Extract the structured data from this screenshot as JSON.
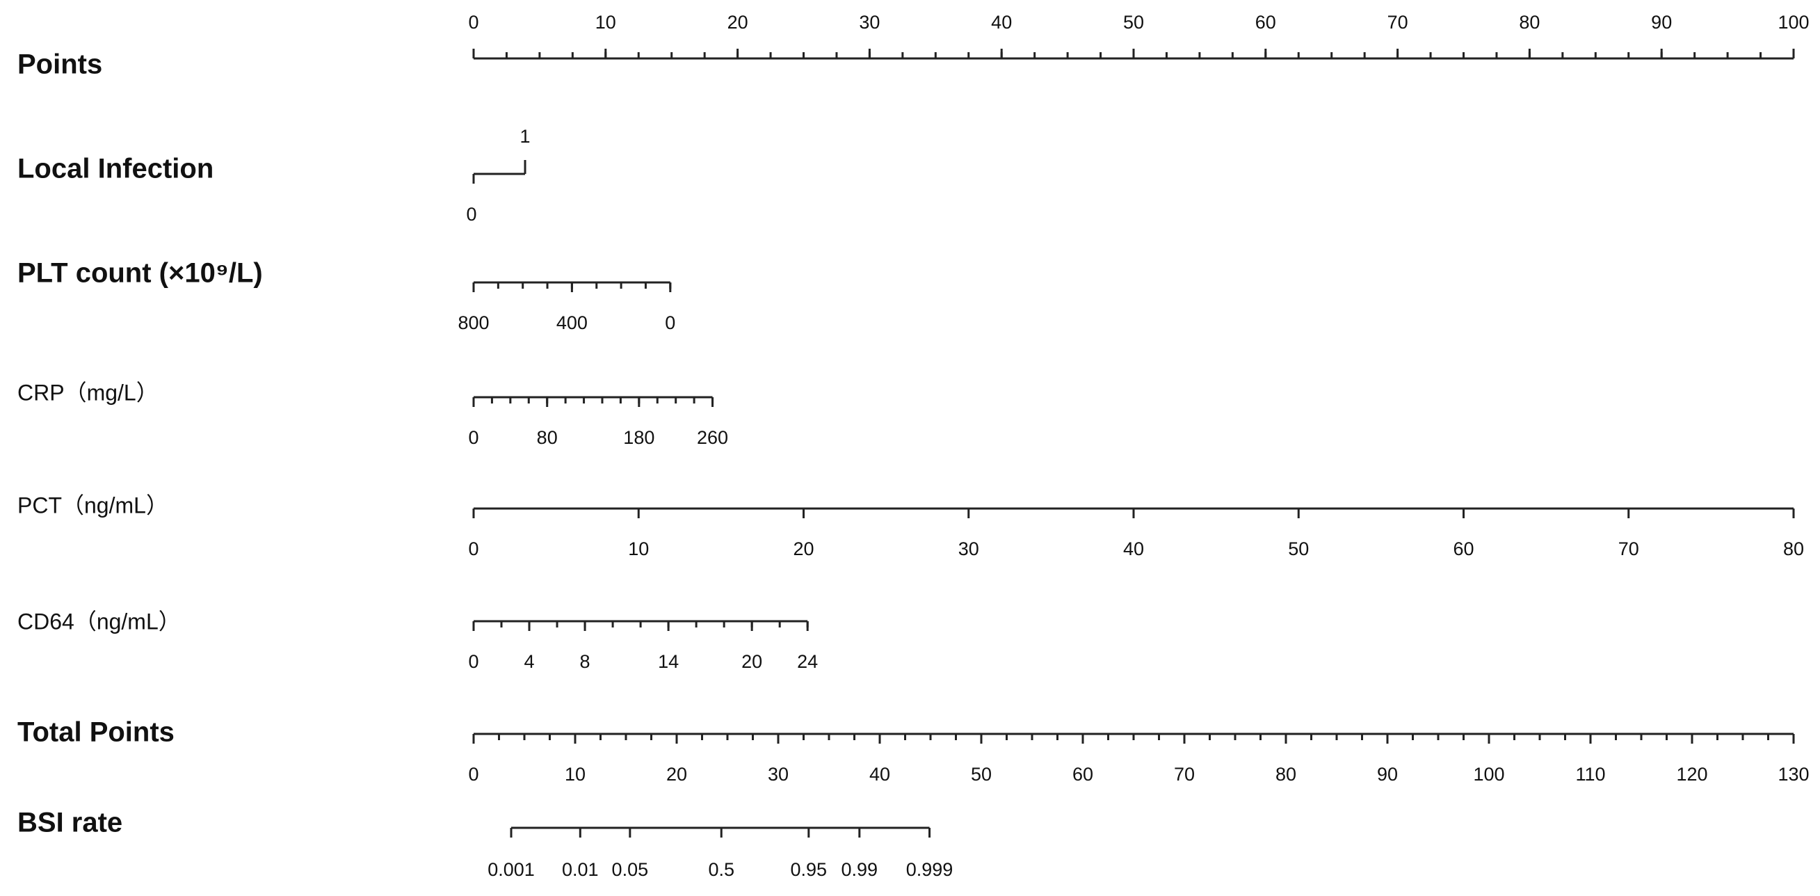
{
  "chart_data": {
    "type": "nomogram",
    "axes": [
      {
        "label": "Points",
        "bold": true,
        "lim": [
          0,
          100
        ],
        "points": [
          0,
          100
        ],
        "ticks": [
          0,
          10,
          20,
          30,
          40,
          50,
          60,
          70,
          80,
          90,
          100
        ],
        "minor_step": 2.5,
        "tick_side": "top"
      },
      {
        "label": "Local Infection",
        "bold": true,
        "lim": [
          0,
          1
        ],
        "points": [
          0,
          3.9
        ],
        "ticks": [
          0,
          1
        ],
        "tick_side": "alternate"
      },
      {
        "label": "PLT count (×10⁹/L)",
        "bold": true,
        "lim": [
          800,
          0
        ],
        "points": [
          0,
          14.9
        ],
        "ticks": [
          800,
          400,
          0
        ],
        "minor_step": 100,
        "tick_side": "bottom"
      },
      {
        "label": "CRP（mg/L）",
        "bold": false,
        "lim": [
          0,
          260
        ],
        "points": [
          0,
          18.1
        ],
        "ticks": [
          0,
          80,
          180,
          260
        ],
        "minor_step": 20,
        "tick_side": "bottom"
      },
      {
        "label": "PCT（ng/mL）",
        "bold": false,
        "lim": [
          0,
          80
        ],
        "points": [
          0,
          100
        ],
        "ticks": [
          0,
          10,
          20,
          30,
          40,
          50,
          60,
          70,
          80
        ],
        "tick_side": "bottom"
      },
      {
        "label": "CD64（ng/mL）",
        "bold": false,
        "lim": [
          0,
          24
        ],
        "points": [
          0,
          25.3
        ],
        "ticks": [
          0,
          4,
          8,
          14,
          20,
          24
        ],
        "minor_step": 2,
        "tick_side": "bottom"
      },
      {
        "label": "Total Points",
        "bold": true,
        "lim": [
          0,
          130
        ],
        "points": [
          0,
          100
        ],
        "ticks": [
          0,
          10,
          20,
          30,
          40,
          50,
          60,
          70,
          80,
          90,
          100,
          110,
          120,
          130
        ],
        "minor_step": 2.5,
        "tick_side": "bottom"
      },
      {
        "label": "BSI rate",
        "bold": true,
        "ticks": [
          0.001,
          0.01,
          0.05,
          0.5,
          0.95,
          0.99,
          0.999
        ],
        "total_points": [
          3.7,
          10.5,
          15.4,
          24.4,
          33.0,
          38.0,
          44.9
        ],
        "tick_side": "bottom"
      }
    ]
  }
}
